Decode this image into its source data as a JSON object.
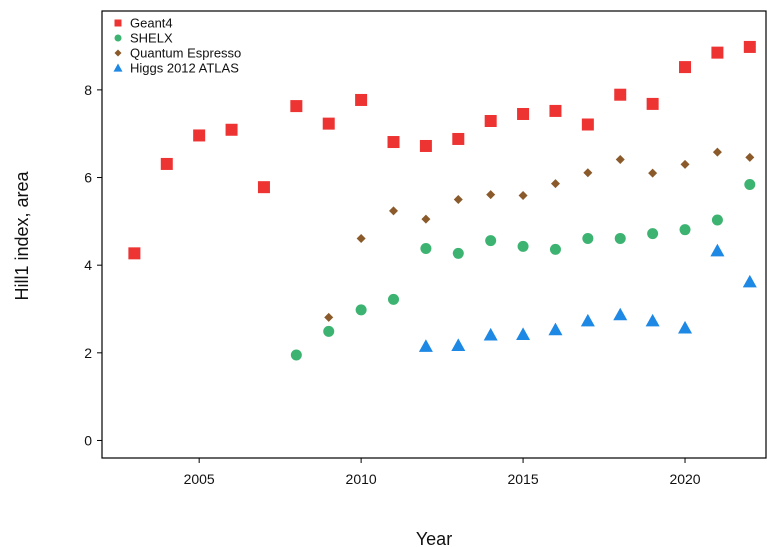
{
  "chart_data": {
    "type": "scatter",
    "title": "",
    "xlabel": "Year",
    "ylabel": "Hill1 index, area",
    "xlim": [
      2002,
      2022.5
    ],
    "ylim": [
      -0.4,
      9.8
    ],
    "xticks": [
      2005,
      2010,
      2015,
      2020
    ],
    "yticks": [
      0,
      2,
      4,
      6,
      8
    ],
    "grid": false,
    "legend_position": "top-left",
    "series": [
      {
        "name": "Geant4",
        "marker": "square",
        "color": "#ee3333",
        "x": [
          2003,
          2004,
          2005,
          2006,
          2007,
          2008,
          2009,
          2010,
          2011,
          2012,
          2013,
          2014,
          2015,
          2016,
          2017,
          2018,
          2019,
          2020,
          2021,
          2022
        ],
        "y": [
          4.27,
          6.31,
          6.96,
          7.09,
          5.78,
          7.63,
          7.23,
          7.77,
          6.81,
          6.72,
          6.88,
          7.29,
          7.45,
          7.52,
          7.21,
          7.89,
          7.68,
          8.52,
          8.85,
          8.98
        ]
      },
      {
        "name": "SHELX",
        "marker": "circle",
        "color": "#3cb371",
        "x": [
          2008,
          2009,
          2010,
          2011,
          2012,
          2013,
          2014,
          2015,
          2016,
          2017,
          2018,
          2019,
          2020,
          2021,
          2022
        ],
        "y": [
          1.95,
          2.49,
          2.98,
          3.22,
          4.38,
          4.27,
          4.56,
          4.43,
          4.36,
          4.61,
          4.61,
          4.72,
          4.81,
          5.03,
          5.84
        ]
      },
      {
        "name": "Quantum Espresso",
        "marker": "diamond",
        "color": "#8b5a2b",
        "x": [
          2009,
          2010,
          2011,
          2012,
          2013,
          2014,
          2015,
          2016,
          2017,
          2018,
          2019,
          2020,
          2021,
          2022
        ],
        "y": [
          2.81,
          4.61,
          5.24,
          5.05,
          5.5,
          5.61,
          5.59,
          5.86,
          6.11,
          6.41,
          6.1,
          6.3,
          6.58,
          6.46
        ]
      },
      {
        "name": "Higgs 2012 ATLAS",
        "marker": "triangle",
        "color": "#1e88e5",
        "x": [
          2012,
          2013,
          2014,
          2015,
          2016,
          2017,
          2018,
          2019,
          2020,
          2021,
          2022
        ],
        "y": [
          2.15,
          2.17,
          2.41,
          2.42,
          2.53,
          2.73,
          2.87,
          2.73,
          2.57,
          4.33,
          3.62
        ]
      }
    ]
  }
}
